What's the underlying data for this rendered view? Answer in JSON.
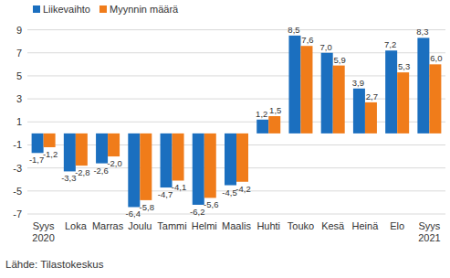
{
  "chart_data": {
    "type": "bar",
    "categories": [
      "Syys 2020",
      "Loka",
      "Marras",
      "Joulu",
      "Tammi",
      "Helmi",
      "Maalis",
      "Huhti",
      "Touko",
      "Kesä",
      "Heinä",
      "Elo",
      "Syys 2021"
    ],
    "series": [
      {
        "name": "Liikevaihto",
        "color": "#1b6fbf",
        "values": [
          -1.7,
          -3.3,
          -2.6,
          -6.4,
          -4.7,
          -6.2,
          -4.5,
          1.2,
          8.5,
          7.0,
          3.9,
          7.2,
          8.3
        ],
        "value_labels": [
          "-1,7",
          "-3,3",
          "-2,6",
          "-6,4",
          "-4,7",
          "-6,2",
          "-4,5",
          "1,2",
          "8,5",
          "7,0",
          "3,9",
          "7,2",
          "8,3"
        ]
      },
      {
        "name": "Myynnin määrä",
        "color": "#f07c1a",
        "values": [
          -1.2,
          -2.8,
          -2.0,
          -5.8,
          -4.1,
          -5.6,
          -4.2,
          1.5,
          7.6,
          5.9,
          2.7,
          5.3,
          6.0
        ],
        "value_labels": [
          "-1,2",
          "-2,8",
          "-2,0",
          "-5,8",
          "-4,1",
          "-5,6",
          "-4,2",
          "1,5",
          "7,6",
          "5,9",
          "2,7",
          "5,3",
          "6,0"
        ]
      }
    ],
    "ylim": [
      -7,
      10
    ],
    "yticks": [
      -7,
      -5,
      -3,
      -1,
      1,
      3,
      5,
      7,
      9
    ],
    "grid": true,
    "legend": "top-left",
    "data_labels": true,
    "source": "Lähde: Tilastokeskus"
  }
}
